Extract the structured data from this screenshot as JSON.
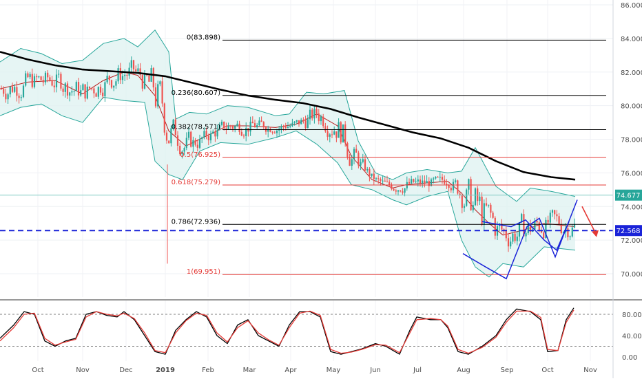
{
  "chart_data": [
    {
      "type": "candlestick",
      "panel": "price",
      "x_labels": [
        "Oct",
        "Nov",
        "Dec",
        "2019",
        "Feb",
        "Mar",
        "Apr",
        "May",
        "Jun",
        "Jul",
        "Aug",
        "Sep",
        "Oct",
        "Nov"
      ],
      "y_ticks": [
        "86.000",
        "84.000",
        "82.000",
        "80.000",
        "78.000",
        "76.000",
        "74.000",
        "72.000",
        "70.000"
      ],
      "ylim": [
        69.0,
        86.3
      ],
      "last_price": "74.677",
      "reference_price": "72.568",
      "fibonacci": [
        {
          "label": "0(83.898)",
          "value": 83.898,
          "color": "#000000"
        },
        {
          "label": "0.236(80.607)",
          "value": 80.607,
          "color": "#000000"
        },
        {
          "label": "0.382(78.571)",
          "value": 78.571,
          "color": "#000000"
        },
        {
          "label": "0.5(76.925)",
          "value": 76.925,
          "color": "#e53935"
        },
        {
          "label": "0.618(75.279)",
          "value": 75.279,
          "color": "#e53935"
        },
        {
          "label": "0.786(72.936)",
          "value": 72.936,
          "color": "#000000"
        },
        {
          "label": "1(69.951)",
          "value": 69.951,
          "color": "#e53935"
        }
      ],
      "ma200": [
        [
          0,
          83.2
        ],
        [
          40,
          82.75
        ],
        [
          80,
          82.4
        ],
        [
          120,
          82.15
        ],
        [
          160,
          82.05
        ],
        [
          200,
          81.95
        ],
        [
          240,
          81.75
        ],
        [
          280,
          81.35
        ],
        [
          320,
          80.95
        ],
        [
          360,
          80.6
        ],
        [
          400,
          80.35
        ],
        [
          440,
          80.15
        ],
        [
          480,
          79.8
        ],
        [
          520,
          79.3
        ],
        [
          560,
          78.85
        ],
        [
          600,
          78.4
        ],
        [
          640,
          78.05
        ],
        [
          680,
          77.5
        ],
        [
          720,
          76.7
        ],
        [
          760,
          76.05
        ],
        [
          800,
          75.75
        ],
        [
          835,
          75.6
        ]
      ],
      "bollinger_upper": [
        [
          0,
          82.6
        ],
        [
          30,
          83.4
        ],
        [
          60,
          83.1
        ],
        [
          90,
          82.5
        ],
        [
          120,
          82.7
        ],
        [
          150,
          83.7
        ],
        [
          180,
          84.0
        ],
        [
          200,
          83.5
        ],
        [
          225,
          84.5
        ],
        [
          245,
          83.2
        ],
        [
          255,
          79.2
        ],
        [
          275,
          79.6
        ],
        [
          300,
          79.5
        ],
        [
          330,
          80.0
        ],
        [
          360,
          79.9
        ],
        [
          400,
          79.4
        ],
        [
          420,
          79.5
        ],
        [
          445,
          80.8
        ],
        [
          470,
          80.7
        ],
        [
          500,
          80.9
        ],
        [
          520,
          77.9
        ],
        [
          545,
          76.0
        ],
        [
          570,
          75.6
        ],
        [
          590,
          76.0
        ],
        [
          620,
          76.2
        ],
        [
          650,
          76.0
        ],
        [
          670,
          76.1
        ],
        [
          690,
          77.5
        ],
        [
          720,
          75.2
        ],
        [
          750,
          74.3
        ],
        [
          770,
          75.1
        ],
        [
          800,
          74.9
        ],
        [
          835,
          74.6
        ]
      ],
      "bollinger_lower": [
        [
          0,
          79.4
        ],
        [
          30,
          79.9
        ],
        [
          60,
          80.1
        ],
        [
          90,
          79.4
        ],
        [
          120,
          79.0
        ],
        [
          150,
          80.5
        ],
        [
          180,
          80.3
        ],
        [
          210,
          80.2
        ],
        [
          225,
          76.7
        ],
        [
          245,
          75.9
        ],
        [
          265,
          75.6
        ],
        [
          290,
          77.3
        ],
        [
          320,
          77.8
        ],
        [
          360,
          77.7
        ],
        [
          400,
          78.1
        ],
        [
          430,
          78.5
        ],
        [
          460,
          77.7
        ],
        [
          490,
          76.6
        ],
        [
          510,
          75.3
        ],
        [
          540,
          75.0
        ],
        [
          570,
          74.4
        ],
        [
          590,
          74.1
        ],
        [
          620,
          74.6
        ],
        [
          650,
          74.9
        ],
        [
          670,
          72.0
        ],
        [
          690,
          70.4
        ],
        [
          710,
          69.8
        ],
        [
          730,
          70.6
        ],
        [
          760,
          70.4
        ],
        [
          790,
          71.6
        ],
        [
          835,
          71.4
        ]
      ],
      "bollinger_middle": [
        [
          0,
          81.0
        ],
        [
          40,
          81.4
        ],
        [
          80,
          81.5
        ],
        [
          120,
          80.7
        ],
        [
          150,
          81.5
        ],
        [
          180,
          82.0
        ],
        [
          200,
          81.8
        ],
        [
          225,
          80.6
        ],
        [
          245,
          78.5
        ],
        [
          270,
          77.6
        ],
        [
          300,
          78.2
        ],
        [
          330,
          78.8
        ],
        [
          360,
          78.8
        ],
        [
          400,
          78.7
        ],
        [
          430,
          78.9
        ],
        [
          460,
          79.5
        ],
        [
          490,
          78.8
        ],
        [
          510,
          77.0
        ],
        [
          540,
          75.6
        ],
        [
          570,
          75.1
        ],
        [
          590,
          75.3
        ],
        [
          620,
          75.4
        ],
        [
          650,
          75.5
        ],
        [
          670,
          74.8
        ],
        [
          690,
          73.8
        ],
        [
          710,
          73.0
        ],
        [
          730,
          72.3
        ],
        [
          760,
          72.6
        ],
        [
          790,
          73.0
        ],
        [
          835,
          72.8
        ]
      ],
      "patterns": {
        "wave_lower": [
          [
            672,
            71.2
          ],
          [
            705,
            70.4
          ],
          [
            735,
            69.7
          ],
          [
            765,
            72.8
          ],
          [
            783,
            73.3
          ],
          [
            806,
            71.0
          ],
          [
            820,
            72.5
          ],
          [
            838,
            74.4
          ]
        ],
        "wave_upper": [
          [
            700,
            73.1
          ],
          [
            742,
            72.8
          ],
          [
            763,
            73.2
          ],
          [
            790,
            72.0
          ],
          [
            808,
            71.4
          ],
          [
            826,
            73.1
          ]
        ],
        "forecast_arrow": [
          [
            845,
            74.0
          ],
          [
            866,
            72.3
          ]
        ]
      }
    },
    {
      "type": "line",
      "panel": "stochastic",
      "y_ticks": [
        "80.00",
        "40.00",
        "0.00"
      ],
      "ylim": [
        -5,
        100
      ],
      "reference_lines": [
        80,
        20
      ],
      "series": [
        {
          "color": "#000000",
          "points": [
            [
              0,
              35
            ],
            [
              20,
              60
            ],
            [
              35,
              85
            ],
            [
              50,
              80
            ],
            [
              65,
              30
            ],
            [
              80,
              20
            ],
            [
              95,
              30
            ],
            [
              110,
              35
            ],
            [
              125,
              80
            ],
            [
              140,
              85
            ],
            [
              155,
              78
            ],
            [
              170,
              75
            ],
            [
              180,
              85
            ],
            [
              195,
              70
            ],
            [
              210,
              40
            ],
            [
              225,
              10
            ],
            [
              240,
              5
            ],
            [
              255,
              50
            ],
            [
              270,
              70
            ],
            [
              285,
              85
            ],
            [
              300,
              75
            ],
            [
              315,
              40
            ],
            [
              330,
              25
            ],
            [
              345,
              60
            ],
            [
              360,
              70
            ],
            [
              375,
              40
            ],
            [
              390,
              30
            ],
            [
              405,
              20
            ],
            [
              420,
              60
            ],
            [
              435,
              85
            ],
            [
              450,
              85
            ],
            [
              465,
              75
            ],
            [
              480,
              10
            ],
            [
              495,
              5
            ],
            [
              510,
              10
            ],
            [
              525,
              15
            ],
            [
              545,
              25
            ],
            [
              560,
              20
            ],
            [
              580,
              5
            ],
            [
              595,
              50
            ],
            [
              605,
              75
            ],
            [
              625,
              70
            ],
            [
              640,
              70
            ],
            [
              650,
              55
            ],
            [
              665,
              10
            ],
            [
              680,
              5
            ],
            [
              700,
              20
            ],
            [
              720,
              40
            ],
            [
              735,
              70
            ],
            [
              750,
              90
            ],
            [
              770,
              85
            ],
            [
              785,
              70
            ],
            [
              795,
              10
            ],
            [
              810,
              12
            ],
            [
              822,
              70
            ],
            [
              833,
              92
            ]
          ]
        },
        {
          "color": "#e53935",
          "points": [
            [
              0,
              30
            ],
            [
              20,
              55
            ],
            [
              35,
              80
            ],
            [
              50,
              82
            ],
            [
              65,
              35
            ],
            [
              80,
              22
            ],
            [
              95,
              28
            ],
            [
              110,
              33
            ],
            [
              125,
              75
            ],
            [
              140,
              85
            ],
            [
              155,
              80
            ],
            [
              170,
              77
            ],
            [
              180,
              82
            ],
            [
              195,
              72
            ],
            [
              210,
              45
            ],
            [
              225,
              12
            ],
            [
              240,
              8
            ],
            [
              255,
              45
            ],
            [
              270,
              68
            ],
            [
              285,
              82
            ],
            [
              300,
              78
            ],
            [
              315,
              45
            ],
            [
              330,
              28
            ],
            [
              345,
              55
            ],
            [
              360,
              68
            ],
            [
              375,
              45
            ],
            [
              390,
              32
            ],
            [
              405,
              22
            ],
            [
              420,
              55
            ],
            [
              435,
              82
            ],
            [
              450,
              86
            ],
            [
              465,
              78
            ],
            [
              480,
              14
            ],
            [
              495,
              7
            ],
            [
              510,
              9
            ],
            [
              525,
              14
            ],
            [
              545,
              23
            ],
            [
              560,
              22
            ],
            [
              580,
              8
            ],
            [
              595,
              45
            ],
            [
              605,
              70
            ],
            [
              625,
              72
            ],
            [
              640,
              70
            ],
            [
              650,
              58
            ],
            [
              665,
              14
            ],
            [
              680,
              7
            ],
            [
              700,
              18
            ],
            [
              720,
              37
            ],
            [
              735,
              65
            ],
            [
              750,
              86
            ],
            [
              770,
              86
            ],
            [
              785,
              74
            ],
            [
              795,
              14
            ],
            [
              810,
              12
            ],
            [
              822,
              65
            ],
            [
              833,
              88
            ]
          ]
        }
      ]
    }
  ],
  "colors": {
    "up": "#26a69a",
    "down": "#ef5350",
    "ma200": "#000000",
    "bollinger_band": "#26a69a",
    "bollinger_fill": "#e0f2f1",
    "fib_black": "#000000",
    "fib_red": "#e53935",
    "reference_line": "#1a23d8",
    "last_price_badge": "#26a69a",
    "reference_badge": "#1a23d8",
    "pattern": "#1a23d8",
    "forecast_arrow": "#e53935"
  }
}
